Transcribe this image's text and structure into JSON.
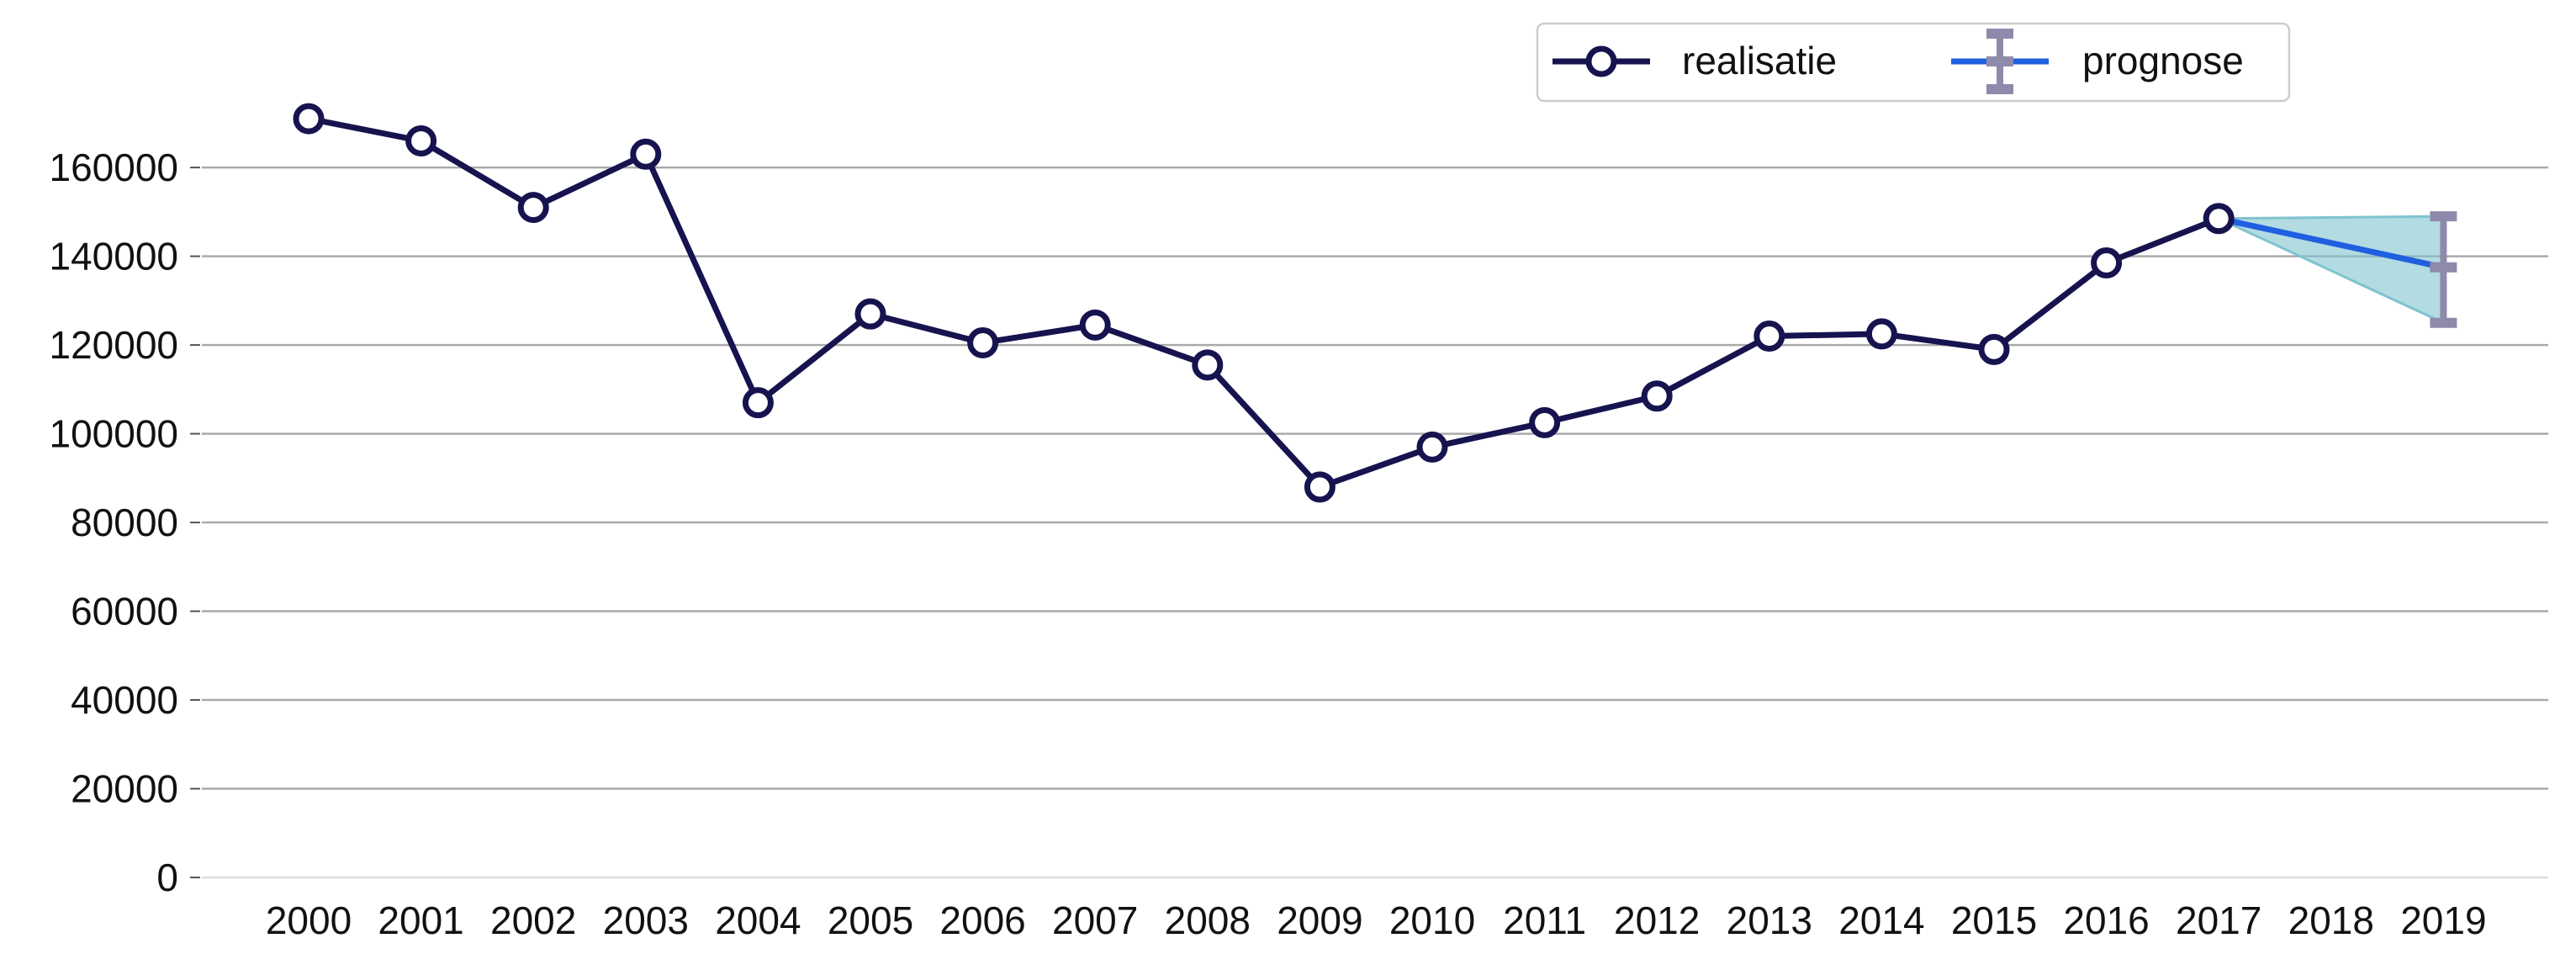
{
  "chart_data": {
    "type": "line",
    "title": "",
    "xlabel": "",
    "ylabel": "",
    "categories": [
      "2000",
      "2001",
      "2002",
      "2003",
      "2004",
      "2005",
      "2006",
      "2007",
      "2008",
      "2009",
      "2010",
      "2011",
      "2012",
      "2013",
      "2014",
      "2015",
      "2016",
      "2017",
      "2018",
      "2019"
    ],
    "ylim": [
      0,
      175000
    ],
    "yticks": [
      0,
      20000,
      40000,
      60000,
      80000,
      100000,
      120000,
      140000,
      160000
    ],
    "ytick_labels": [
      "0",
      "20000",
      "40000",
      "60000",
      "80000",
      "100000",
      "120000",
      "140000",
      "160000"
    ],
    "grid": "horizontal",
    "legend_position": "top-right",
    "series": [
      {
        "name": "realisatie",
        "color": "#16134f",
        "marker": "open-circle",
        "x": [
          "2000",
          "2001",
          "2002",
          "2003",
          "2004",
          "2005",
          "2006",
          "2007",
          "2008",
          "2009",
          "2010",
          "2011",
          "2012",
          "2013",
          "2014",
          "2015",
          "2016",
          "2017"
        ],
        "values": [
          171000,
          166000,
          151000,
          163000,
          107000,
          127000,
          120500,
          124500,
          115500,
          88000,
          97000,
          102500,
          108500,
          122000,
          122500,
          119000,
          138500,
          148500
        ]
      },
      {
        "name": "prognose",
        "color": "#1f5fe0",
        "errorbar_color": "#8e8aab",
        "band_color": "#7fc3cf",
        "x": [
          "2017",
          "2019"
        ],
        "values": [
          148500,
          137500
        ],
        "lower": [
          148500,
          125000
        ],
        "upper": [
          148500,
          149000
        ]
      }
    ]
  }
}
